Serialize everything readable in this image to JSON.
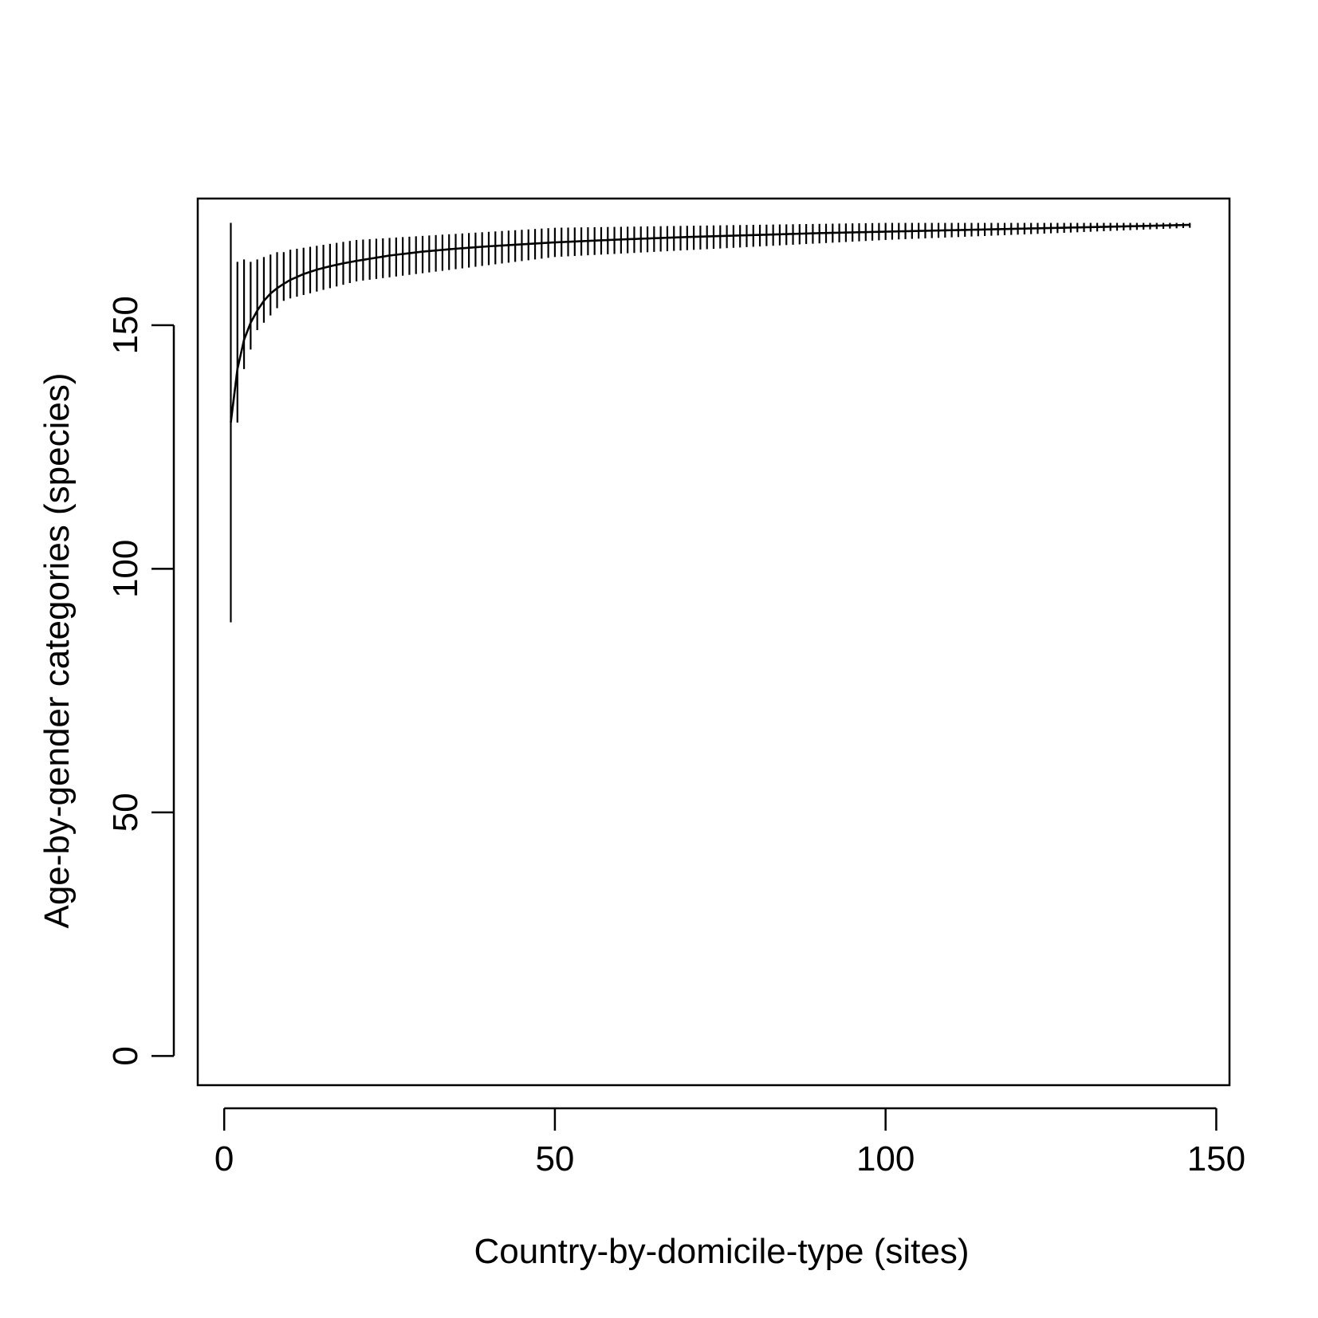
{
  "chart_data": {
    "type": "line",
    "title": "",
    "xlabel": "Country-by-domicile-type (sites)",
    "ylabel": "Age-by-gender categories (species)",
    "xlim": [
      -4,
      152
    ],
    "ylim": [
      -6,
      176
    ],
    "x_ticks": [
      0,
      50,
      100,
      150
    ],
    "y_ticks": [
      0,
      50,
      100,
      150
    ],
    "x_tick_labels": [
      "0",
      "50",
      "100",
      "150"
    ],
    "y_tick_labels": [
      "0",
      "50",
      "100",
      "150"
    ],
    "grid": false,
    "legend": "none",
    "series": [
      {
        "x": [
          1,
          2,
          3,
          4,
          5,
          6,
          7,
          8,
          9,
          10,
          12,
          14,
          16,
          18,
          20,
          25,
          30,
          35,
          40,
          45,
          50,
          60,
          70,
          80,
          90,
          100,
          110,
          120,
          130,
          140,
          146
        ],
        "y": [
          130,
          141,
          147,
          150.5,
          153,
          155,
          156.5,
          157.6,
          158.5,
          159.3,
          160.5,
          161.4,
          162.1,
          162.7,
          163.2,
          164.3,
          165.1,
          165.7,
          166.2,
          166.6,
          167,
          167.6,
          168.1,
          168.5,
          168.9,
          169.2,
          169.5,
          169.8,
          170.1,
          170.4,
          170.6
        ]
      }
    ],
    "error_bars": {
      "description": "sd interval shown at every site count",
      "x": [
        1,
        2,
        3,
        4,
        5,
        6,
        7,
        8,
        9,
        10,
        20,
        50,
        100,
        146
      ],
      "lower": [
        89,
        130,
        141,
        145,
        149,
        150.5,
        152,
        153.5,
        155,
        155.5,
        159,
        164,
        167.5,
        170
      ],
      "upper": [
        171,
        163,
        163.5,
        163,
        163.5,
        164,
        164.5,
        165,
        165,
        165.5,
        167.5,
        170,
        171,
        171
      ]
    }
  }
}
